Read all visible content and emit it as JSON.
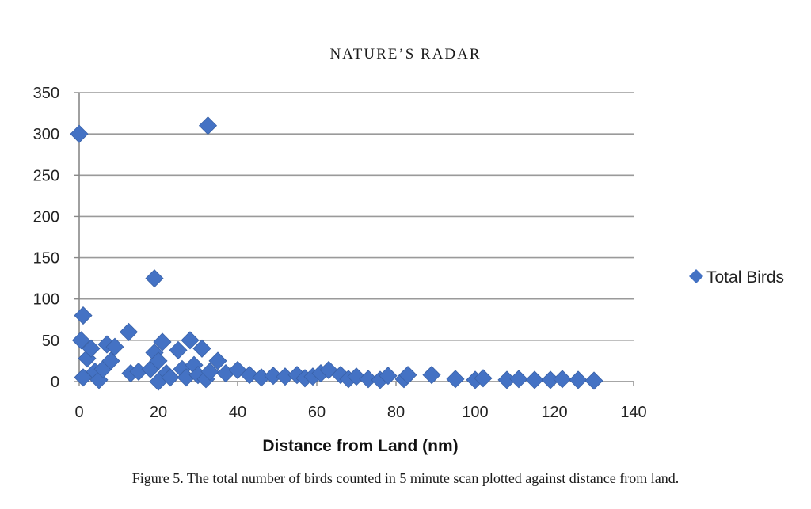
{
  "page": {
    "running_head": "NATURE’S RADAR",
    "caption": "Figure 5.  The total number of birds counted in 5 minute scan plotted against distance from land."
  },
  "chart_data": {
    "type": "scatter",
    "title": "",
    "xlabel": "Distance from Land (nm)",
    "ylabel": "",
    "xlim": [
      0,
      140
    ],
    "ylim": [
      0,
      350
    ],
    "x_ticks": [
      0,
      20,
      40,
      60,
      80,
      100,
      120,
      140
    ],
    "y_ticks": [
      0,
      50,
      100,
      150,
      200,
      250,
      300,
      350
    ],
    "grid": "horizontal",
    "legend_position": "right",
    "marker": "diamond",
    "colors": {
      "series": "#4472C4",
      "grid": "#9a9a9a",
      "axis": "#888888"
    },
    "series": [
      {
        "name": "Total Birds",
        "points": [
          [
            0,
            300
          ],
          [
            1,
            80
          ],
          [
            0.5,
            50
          ],
          [
            32.5,
            310
          ],
          [
            19,
            125
          ],
          [
            1,
            5
          ],
          [
            2,
            28
          ],
          [
            3,
            40
          ],
          [
            4,
            12
          ],
          [
            5,
            2
          ],
          [
            6,
            15
          ],
          [
            7,
            45
          ],
          [
            8,
            25
          ],
          [
            9,
            42
          ],
          [
            12.5,
            60
          ],
          [
            13,
            10
          ],
          [
            15,
            12
          ],
          [
            18,
            15
          ],
          [
            19,
            35
          ],
          [
            20,
            25
          ],
          [
            21,
            48
          ],
          [
            22,
            10
          ],
          [
            20,
            0
          ],
          [
            23,
            5
          ],
          [
            25,
            38
          ],
          [
            26,
            15
          ],
          [
            27,
            5
          ],
          [
            28,
            50
          ],
          [
            29,
            20
          ],
          [
            30,
            8
          ],
          [
            31,
            40
          ],
          [
            32,
            3
          ],
          [
            33,
            12
          ],
          [
            35,
            25
          ],
          [
            37,
            10
          ],
          [
            40,
            14
          ],
          [
            43,
            8
          ],
          [
            46,
            5
          ],
          [
            49,
            7
          ],
          [
            52,
            6
          ],
          [
            55,
            8
          ],
          [
            57,
            4
          ],
          [
            59,
            6
          ],
          [
            61,
            10
          ],
          [
            63,
            14
          ],
          [
            66,
            8
          ],
          [
            68,
            3
          ],
          [
            70,
            6
          ],
          [
            73,
            3
          ],
          [
            76,
            2
          ],
          [
            78,
            7
          ],
          [
            82,
            3
          ],
          [
            83,
            8
          ],
          [
            89,
            8
          ],
          [
            95,
            3
          ],
          [
            100,
            2
          ],
          [
            102,
            4
          ],
          [
            108,
            2
          ],
          [
            111,
            3
          ],
          [
            115,
            2
          ],
          [
            119,
            2
          ],
          [
            122,
            3
          ],
          [
            126,
            2
          ],
          [
            130,
            1
          ]
        ]
      }
    ]
  }
}
